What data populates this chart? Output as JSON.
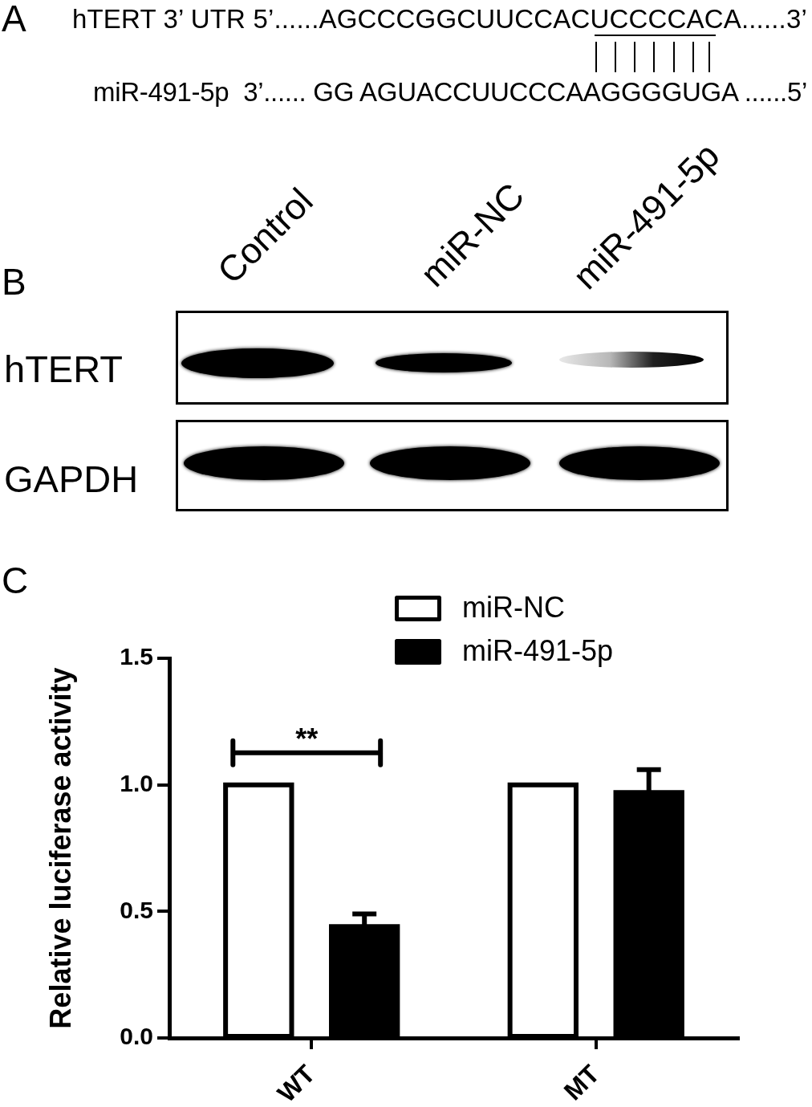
{
  "chart_data": [
    {
      "type": "other",
      "title": "A",
      "annotations": [
        "hTERT 3’ UTR 5’......AGCCCGGCUUCCACUCCCCACA......3’",
        "miR-491-5p  3’...... GG AGUACCUUCCCAAGGGGUGA ......5’"
      ]
    },
    {
      "type": "other",
      "title": "B",
      "categories": [
        "Control",
        "miR-NC",
        "miR-491-5p"
      ],
      "annotations": [
        "hTERT",
        "GAPDH"
      ]
    },
    {
      "type": "bar",
      "title": "C",
      "categories": [
        "WT",
        "MT"
      ],
      "series": [
        {
          "name": "miR-NC",
          "color": "#ffffff",
          "values": [
            1.0,
            1.0
          ]
        },
        {
          "name": "miR-491-5p",
          "color": "#000000",
          "values": [
            0.44,
            0.97
          ],
          "errors": [
            0.05,
            0.09
          ]
        }
      ],
      "ylabel": "Relative luciferase activity",
      "ylim": [
        0,
        1.5
      ],
      "yticks": [
        {
          "value": 0,
          "label": "0.0"
        },
        0.5,
        {
          "value": 1,
          "label": "1.0"
        },
        1.5
      ],
      "legend": "top",
      "grid": false,
      "annotations": [
        "**"
      ]
    }
  ]
}
